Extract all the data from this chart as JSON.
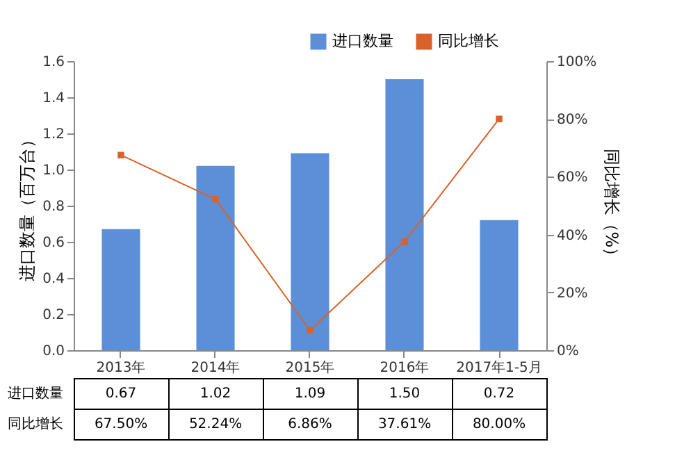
{
  "chart_data": {
    "type": "bar",
    "categories": [
      "2013年",
      "2014年",
      "2015年",
      "2016年",
      "2017年1-5月"
    ],
    "series": [
      {
        "name": "进口数量",
        "color": "#5b8fd8",
        "values": [
          0.67,
          1.02,
          1.09,
          1.5,
          0.72
        ],
        "value_labels": [
          "0.67",
          "1.02",
          "1.09",
          "1.50",
          "0.72"
        ]
      },
      {
        "name": "同比增长",
        "type": "line",
        "axis": "y2",
        "color": "#d9622b",
        "values": [
          67.5,
          52.24,
          6.86,
          37.61,
          80.0
        ],
        "value_labels": [
          "67.50%",
          "52.24%",
          "6.86%",
          "37.61%",
          "80.00%"
        ]
      }
    ],
    "ylabel": "进口数量（百万台）",
    "y2label": "同比增长（%）",
    "ylim": [
      0,
      1.6
    ],
    "yticks": [
      {
        "value": 0,
        "label": "0.0"
      },
      0.2,
      0.4,
      0.6,
      0.8,
      {
        "value": 1,
        "label": "1.0"
      },
      1.2,
      1.4,
      1.6
    ],
    "y2lim": [
      0,
      100
    ],
    "y2ticks": [
      {
        "value": 0,
        "label": "0%"
      },
      {
        "value": 20,
        "label": "20%"
      },
      {
        "value": 40,
        "label": "40%"
      },
      {
        "value": 60,
        "label": "60%"
      },
      {
        "value": 80,
        "label": "80%"
      },
      {
        "value": 100,
        "label": "100%"
      }
    ],
    "legend": "top right",
    "marker": "square",
    "line_style": "solid",
    "grid": false
  }
}
